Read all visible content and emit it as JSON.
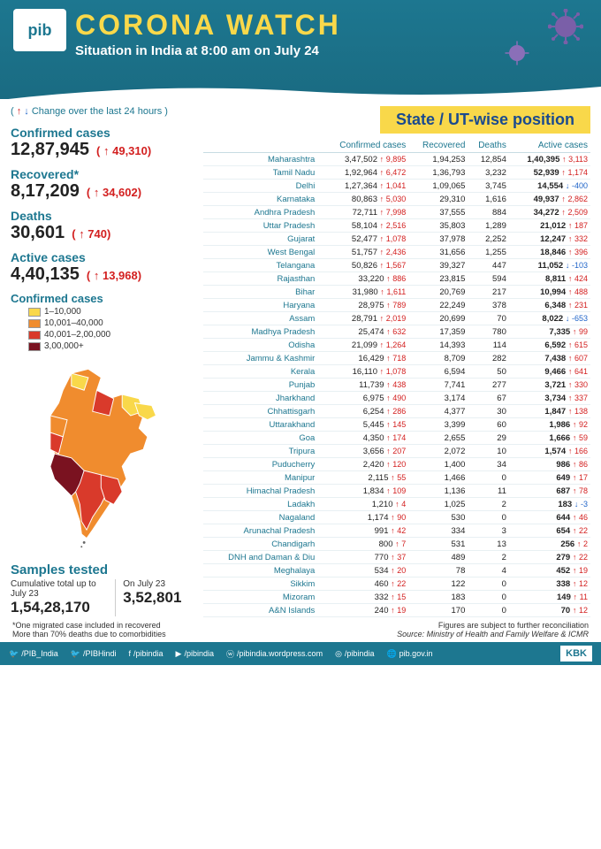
{
  "header": {
    "logo_text": "pib",
    "title": "CORONA WATCH",
    "subtitle": "Situation in India at 8:00 am on July 24"
  },
  "change_note": "( ↑ ↓ Change over the last 24 hours )",
  "state_banner": "State / UT-wise position",
  "summary": [
    {
      "label": "Confirmed cases",
      "value": "12,87,945",
      "change": "49,310",
      "dir": "up"
    },
    {
      "label": "Recovered*",
      "value": "8,17,209",
      "change": "34,602",
      "dir": "up"
    },
    {
      "label": "Deaths",
      "value": "30,601",
      "change": "740",
      "dir": "up"
    },
    {
      "label": "Active cases",
      "value": "4,40,135",
      "change": "13,968",
      "dir": "up"
    }
  ],
  "legend": {
    "title": "Confirmed cases",
    "items": [
      {
        "color": "#f9d84a",
        "label": "1–10,000"
      },
      {
        "color": "#f08c2e",
        "label": "10,001–40,000"
      },
      {
        "color": "#d93a2b",
        "label": "40,001–2,00,000"
      },
      {
        "color": "#7a1220",
        "label": "3,00,000+"
      }
    ]
  },
  "samples": {
    "title": "Samples tested",
    "cumulative_label": "Cumulative total up to July 23",
    "cumulative_value": "1,54,28,170",
    "daily_label": "On July 23",
    "daily_value": "3,52,801"
  },
  "table": {
    "headers": [
      "",
      "Confirmed cases",
      "Recovered",
      "Deaths",
      "Active cases"
    ],
    "rows": [
      {
        "name": "Maharashtra",
        "conf": "3,47,502",
        "cc": "9,895",
        "rec": "1,94,253",
        "d": "12,854",
        "act": "1,40,395",
        "ac": "3,113",
        "ad": "up"
      },
      {
        "name": "Tamil Nadu",
        "conf": "1,92,964",
        "cc": "6,472",
        "rec": "1,36,793",
        "d": "3,232",
        "act": "52,939",
        "ac": "1,174",
        "ad": "up"
      },
      {
        "name": "Delhi",
        "conf": "1,27,364",
        "cc": "1,041",
        "rec": "1,09,065",
        "d": "3,745",
        "act": "14,554",
        "ac": "-400",
        "ad": "down"
      },
      {
        "name": "Karnataka",
        "conf": "80,863",
        "cc": "5,030",
        "rec": "29,310",
        "d": "1,616",
        "act": "49,937",
        "ac": "2,862",
        "ad": "up"
      },
      {
        "name": "Andhra Pradesh",
        "conf": "72,711",
        "cc": "7,998",
        "rec": "37,555",
        "d": "884",
        "act": "34,272",
        "ac": "2,509",
        "ad": "up"
      },
      {
        "name": "Uttar Pradesh",
        "conf": "58,104",
        "cc": "2,516",
        "rec": "35,803",
        "d": "1,289",
        "act": "21,012",
        "ac": "187",
        "ad": "up"
      },
      {
        "name": "Gujarat",
        "conf": "52,477",
        "cc": "1,078",
        "rec": "37,978",
        "d": "2,252",
        "act": "12,247",
        "ac": "332",
        "ad": "up"
      },
      {
        "name": "West Bengal",
        "conf": "51,757",
        "cc": "2,436",
        "rec": "31,656",
        "d": "1,255",
        "act": "18,846",
        "ac": "396",
        "ad": "up"
      },
      {
        "name": "Telangana",
        "conf": "50,826",
        "cc": "1,567",
        "rec": "39,327",
        "d": "447",
        "act": "11,052",
        "ac": "-103",
        "ad": "down"
      },
      {
        "name": "Rajasthan",
        "conf": "33,220",
        "cc": "886",
        "rec": "23,815",
        "d": "594",
        "act": "8,811",
        "ac": "424",
        "ad": "up"
      },
      {
        "name": "Bihar",
        "conf": "31,980",
        "cc": "1,611",
        "rec": "20,769",
        "d": "217",
        "act": "10,994",
        "ac": "488",
        "ad": "up"
      },
      {
        "name": "Haryana",
        "conf": "28,975",
        "cc": "789",
        "rec": "22,249",
        "d": "378",
        "act": "6,348",
        "ac": "231",
        "ad": "up"
      },
      {
        "name": "Assam",
        "conf": "28,791",
        "cc": "2,019",
        "rec": "20,699",
        "d": "70",
        "act": "8,022",
        "ac": "-653",
        "ad": "down"
      },
      {
        "name": "Madhya Pradesh",
        "conf": "25,474",
        "cc": "632",
        "rec": "17,359",
        "d": "780",
        "act": "7,335",
        "ac": "99",
        "ad": "up"
      },
      {
        "name": "Odisha",
        "conf": "21,099",
        "cc": "1,264",
        "rec": "14,393",
        "d": "114",
        "act": "6,592",
        "ac": "615",
        "ad": "up"
      },
      {
        "name": "Jammu & Kashmir",
        "conf": "16,429",
        "cc": "718",
        "rec": "8,709",
        "d": "282",
        "act": "7,438",
        "ac": "607",
        "ad": "up"
      },
      {
        "name": "Kerala",
        "conf": "16,110",
        "cc": "1,078",
        "rec": "6,594",
        "d": "50",
        "act": "9,466",
        "ac": "641",
        "ad": "up"
      },
      {
        "name": "Punjab",
        "conf": "11,739",
        "cc": "438",
        "rec": "7,741",
        "d": "277",
        "act": "3,721",
        "ac": "330",
        "ad": "up"
      },
      {
        "name": "Jharkhand",
        "conf": "6,975",
        "cc": "490",
        "rec": "3,174",
        "d": "67",
        "act": "3,734",
        "ac": "337",
        "ad": "up"
      },
      {
        "name": "Chhattisgarh",
        "conf": "6,254",
        "cc": "286",
        "rec": "4,377",
        "d": "30",
        "act": "1,847",
        "ac": "138",
        "ad": "up"
      },
      {
        "name": "Uttarakhand",
        "conf": "5,445",
        "cc": "145",
        "rec": "3,399",
        "d": "60",
        "act": "1,986",
        "ac": "92",
        "ad": "up"
      },
      {
        "name": "Goa",
        "conf": "4,350",
        "cc": "174",
        "rec": "2,655",
        "d": "29",
        "act": "1,666",
        "ac": "59",
        "ad": "up"
      },
      {
        "name": "Tripura",
        "conf": "3,656",
        "cc": "207",
        "rec": "2,072",
        "d": "10",
        "act": "1,574",
        "ac": "166",
        "ad": "up"
      },
      {
        "name": "Puducherry",
        "conf": "2,420",
        "cc": "120",
        "rec": "1,400",
        "d": "34",
        "act": "986",
        "ac": "86",
        "ad": "up"
      },
      {
        "name": "Manipur",
        "conf": "2,115",
        "cc": "55",
        "rec": "1,466",
        "d": "0",
        "act": "649",
        "ac": "17",
        "ad": "up"
      },
      {
        "name": "Himachal Pradesh",
        "conf": "1,834",
        "cc": "109",
        "rec": "1,136",
        "d": "11",
        "act": "687",
        "ac": "78",
        "ad": "up"
      },
      {
        "name": "Ladakh",
        "conf": "1,210",
        "cc": "4",
        "rec": "1,025",
        "d": "2",
        "act": "183",
        "ac": "-3",
        "ad": "down"
      },
      {
        "name": "Nagaland",
        "conf": "1,174",
        "cc": "90",
        "rec": "530",
        "d": "0",
        "act": "644",
        "ac": "46",
        "ad": "up"
      },
      {
        "name": "Arunachal Pradesh",
        "conf": "991",
        "cc": "42",
        "rec": "334",
        "d": "3",
        "act": "654",
        "ac": "22",
        "ad": "up"
      },
      {
        "name": "Chandigarh",
        "conf": "800",
        "cc": "7",
        "rec": "531",
        "d": "13",
        "act": "256",
        "ac": "2",
        "ad": "up"
      },
      {
        "name": "DNH and Daman & Diu",
        "conf": "770",
        "cc": "37",
        "rec": "489",
        "d": "2",
        "act": "279",
        "ac": "22",
        "ad": "up"
      },
      {
        "name": "Meghalaya",
        "conf": "534",
        "cc": "20",
        "rec": "78",
        "d": "4",
        "act": "452",
        "ac": "19",
        "ad": "up"
      },
      {
        "name": "Sikkim",
        "conf": "460",
        "cc": "22",
        "rec": "122",
        "d": "0",
        "act": "338",
        "ac": "12",
        "ad": "up"
      },
      {
        "name": "Mizoram",
        "conf": "332",
        "cc": "15",
        "rec": "183",
        "d": "0",
        "act": "149",
        "ac": "11",
        "ad": "up"
      },
      {
        "name": "A&N Islands",
        "conf": "240",
        "cc": "19",
        "rec": "170",
        "d": "0",
        "act": "70",
        "ac": "12",
        "ad": "up"
      }
    ]
  },
  "footnotes": {
    "left1": "*One migrated case included in recovered",
    "left2": "More than 70% deaths due to comorbidities",
    "right1": "Figures are subject to further reconciliation",
    "right2": "Source: Ministry of Health and Family Welfare & ICMR"
  },
  "footer_links": [
    {
      "icon": "🐦",
      "text": "/PIB_India"
    },
    {
      "icon": "🐦",
      "text": "/PIBHindi"
    },
    {
      "icon": "f",
      "text": "/pibindia"
    },
    {
      "icon": "▶",
      "text": "/pibindia"
    },
    {
      "icon": "ⓦ",
      "text": "/pibindia.wordpress.com"
    },
    {
      "icon": "◎",
      "text": "/pibindia"
    },
    {
      "icon": "🌐",
      "text": "pib.gov.in"
    }
  ],
  "footer_badge": "KBK",
  "colors": {
    "header_bg": "#1d7790",
    "accent_yellow": "#f9d84a",
    "up_arrow": "#d32020",
    "down_arrow": "#2165c9"
  }
}
